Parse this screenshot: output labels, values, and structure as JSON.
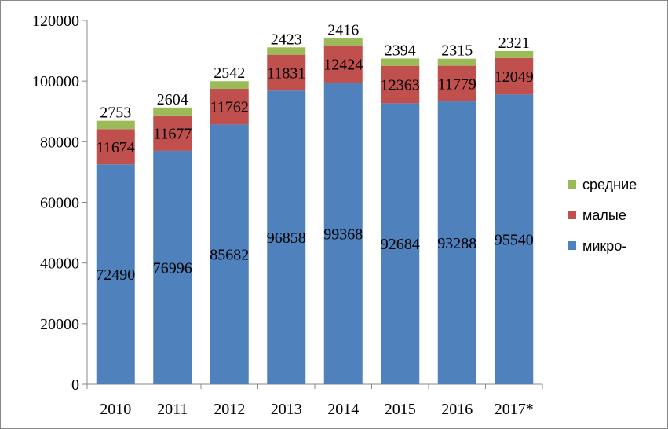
{
  "chart_data": {
    "type": "bar",
    "stacked": true,
    "categories": [
      "2010",
      "2011",
      "2012",
      "2013",
      "2014",
      "2015",
      "2016",
      "2017*"
    ],
    "series": [
      {
        "name": "микро-",
        "color": "#4f81bd",
        "values": [
          72490,
          76996,
          85682,
          96858,
          99368,
          92684,
          93288,
          95540
        ]
      },
      {
        "name": "малые",
        "color": "#c0504d",
        "values": [
          11674,
          11677,
          11762,
          11831,
          12424,
          12363,
          11779,
          12049
        ]
      },
      {
        "name": "средние",
        "color": "#9bbb59",
        "values": [
          2753,
          2604,
          2542,
          2423,
          2416,
          2394,
          2315,
          2321
        ]
      }
    ],
    "ylim": [
      0,
      120000
    ],
    "yticks": [
      "0",
      "20000",
      "40000",
      "60000",
      "80000",
      "100000",
      "120000"
    ],
    "grid": false,
    "legend": "right",
    "legend_order": [
      "средние",
      "малые",
      "микро-"
    ]
  }
}
